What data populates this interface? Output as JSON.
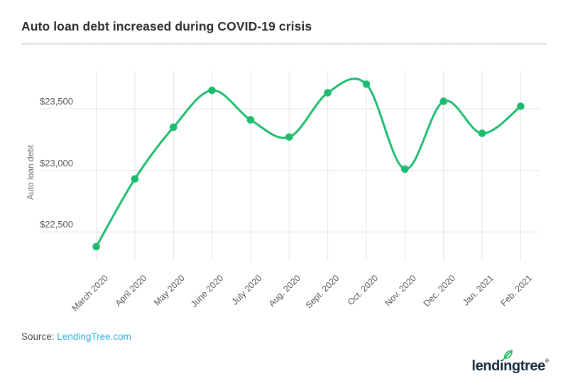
{
  "title": "Auto loan debt increased during COVID-19 crisis",
  "source": {
    "label": "Source:",
    "link_text": "LendingTree.com"
  },
  "logo": {
    "text": "lendingtree",
    "registered": "®"
  },
  "colors": {
    "accent_green": "#1dbc6f",
    "leaf_green": "#2abd62",
    "logo_navy": "#16283a",
    "link_blue": "#29b0e8",
    "grid_gray": "#e4e4e4",
    "title_text": "#2c2c2c",
    "axis_text": "#56575b",
    "axis_title_text": "#6f6f6f"
  },
  "chart_data": {
    "type": "line",
    "title": "Auto loan debt increased during COVID-19 crisis",
    "categories": [
      "March 2020",
      "April 2020",
      "May 2020",
      "June 2020",
      "July 2020",
      "Aug. 2020",
      "Sept. 2020",
      "Oct. 2020",
      "Nov. 2020",
      "Dec. 2020",
      "Jan. 2021",
      "Feb. 2021"
    ],
    "series": [
      {
        "name": "Auto loan debt",
        "values": [
          22380,
          22930,
          23350,
          23650,
          23410,
          23270,
          23630,
          23700,
          23010,
          23560,
          23300,
          23520
        ]
      }
    ],
    "ylabel": "Auto loan debt",
    "xlabel": "",
    "yticks": [
      {
        "value": 22500,
        "label": "$22,500"
      },
      {
        "value": 23000,
        "label": "$23,000"
      },
      {
        "value": 23500,
        "label": "$23,500"
      }
    ],
    "ylim": [
      22260,
      23810
    ],
    "grid": true,
    "legend": false,
    "smooth": true,
    "marker": "circle"
  }
}
